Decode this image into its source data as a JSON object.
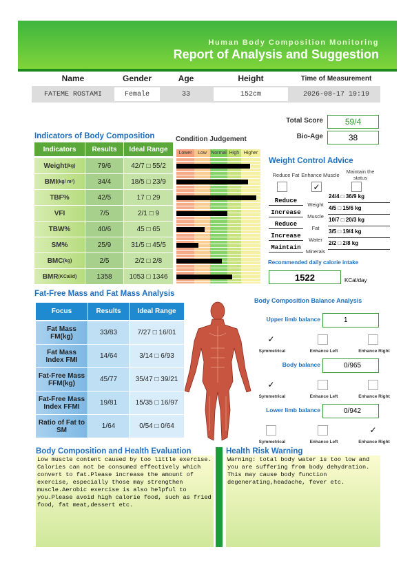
{
  "header": {
    "subtitle": "Human Body Composition Monitoring",
    "title": "Report of Analysis and Suggestion"
  },
  "profile": {
    "labels": [
      "Name",
      "Gender",
      "Age",
      "Height",
      "Time of Measurement"
    ],
    "values": [
      "FATEME ROSTAMI",
      "Female",
      "33",
      "152cm",
      "2026-08-17   19:19"
    ]
  },
  "score": {
    "total_score_label": "Total Score",
    "total_score": "59/4",
    "bio_age_label": "Bio-Age",
    "bio_age": "38"
  },
  "indicators": {
    "title": "Indicators of Body Composition",
    "columns": [
      "Indicators",
      "Results",
      "Ideal Range"
    ],
    "rows": [
      [
        "Weight",
        "(kg)",
        "79/6",
        "42/7 □ 55/2"
      ],
      [
        "BMI",
        "(kg/ m²)",
        "34/4",
        "18/5 □ 23/9"
      ],
      [
        "TBF%",
        "",
        "42/5",
        "17 □ 29"
      ],
      [
        "VFI",
        "",
        "7/5",
        "2/1 □ 9"
      ],
      [
        "TBW%",
        "",
        "40/6",
        "45 □ 65"
      ],
      [
        "SM%",
        "",
        "25/9",
        "31/5 □ 45/5"
      ],
      [
        "BMC",
        "(kg)",
        "2/5",
        "2/2 □ 2/8"
      ],
      [
        "BMR",
        " (KCal/d)",
        "1358",
        "1053 □ 1346"
      ]
    ]
  },
  "condition": {
    "title": "Condition Judgement",
    "levels": [
      "Lower",
      "Low",
      "Normal",
      "High",
      "Higher"
    ]
  },
  "weight_control": {
    "title": "Weight Control Advice",
    "options": [
      "Reduce Fat",
      "Enhance Muscle",
      "Maintain the status"
    ],
    "checked": 1,
    "rows": [
      [
        "Reduce",
        "Weight",
        "24/4 □ 36/9 kg"
      ],
      [
        "Increase",
        "Muscle",
        "4/5 □ 15/6 kg"
      ],
      [
        "Reduce",
        "Fat",
        "10/7 □ 20/3 kg"
      ],
      [
        "Increase",
        "Water",
        "3/5 □ 19/4 kg"
      ],
      [
        "Maintain",
        "Minerals",
        "2/2 □ 2/8 kg"
      ]
    ],
    "calorie_title": "Recommended daily calorie intake",
    "calorie": "1522",
    "calorie_unit": "KCal/day"
  },
  "fat_analysis": {
    "title": "Fat-Free Mass and Fat Mass Analysis",
    "columns": [
      "Focus",
      "Results",
      "Ideal Range"
    ],
    "rows": [
      [
        "Fat Mass FM(kg)",
        "33/83",
        "7/27 □ 16/01"
      ],
      [
        "Fat Mass Index FMI",
        "14/64",
        "3/14 □ 6/93"
      ],
      [
        "Fat-Free Mass FFM(kg)",
        "45/77",
        "35/47 □ 39/21"
      ],
      [
        "Fat-Free Mass Index FFMI",
        "19/81",
        "15/35 □ 16/97"
      ],
      [
        "Ratio of Fat to SM",
        "1/64",
        "0/54 □ 0/64"
      ]
    ]
  },
  "balance": {
    "title": "Body Composition Balance Analysis",
    "options": [
      "Symmetrical",
      "Enhance Left",
      "Enhance Right"
    ],
    "items": [
      {
        "label": "Upper limb balance",
        "value": "1",
        "checked": 0
      },
      {
        "label": "Body balance",
        "value": "0/965",
        "checked": 0
      },
      {
        "label": "Lower limb balance",
        "value": "0/942",
        "checked": 2
      }
    ]
  },
  "evaluation": {
    "title": "Body Composition and Health Evaluation",
    "text": "Low muscle content caused by too little exercise. Calories can not be consumed effectively which convert to fat.Please increase the amount of exercise, especially those may strengthen muscle.Aerobic exercise is also helpful to you.Please avoid high calorie food, such as fried food, fat meat,dessert etc."
  },
  "warning": {
    "title": "Health Risk Warning",
    "text": "Warning: total body water is too low and you are suffering from body dehydration. This may cause body function degenerating,headache, fever etc."
  }
}
